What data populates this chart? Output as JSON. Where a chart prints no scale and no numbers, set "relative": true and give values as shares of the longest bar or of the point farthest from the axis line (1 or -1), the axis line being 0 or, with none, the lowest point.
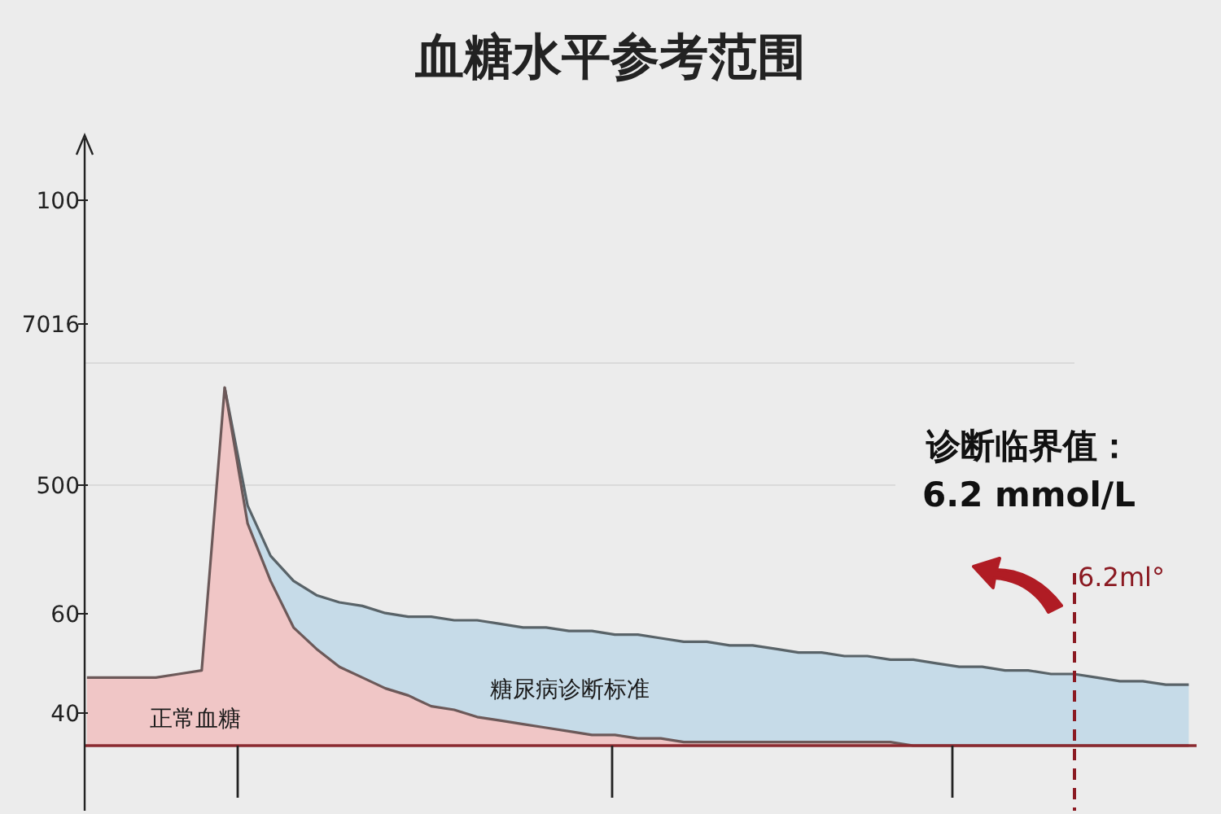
{
  "chart_data": {
    "type": "area",
    "title": "血糖水平参考范围",
    "relative": true,
    "categories": [
      null,
      null,
      null,
      null,
      null,
      null,
      null,
      null,
      null,
      null,
      null,
      null,
      null,
      null,
      null,
      null,
      null,
      null,
      null,
      null,
      null,
      null,
      null,
      null,
      null,
      null,
      null,
      null,
      null,
      null,
      null,
      null,
      null,
      null,
      null,
      null,
      null,
      null,
      null,
      null,
      null,
      null,
      null,
      null,
      null,
      null,
      null,
      null,
      null
    ],
    "series": [
      {
        "name": "糖尿病诊断标准",
        "color": "#c6dbe8",
        "values": [
          null,
          null,
          null,
          null,
          null,
          null,
          1.0,
          0.67,
          0.53,
          0.46,
          0.42,
          0.4,
          0.39,
          0.37,
          0.36,
          0.36,
          0.35,
          0.35,
          0.34,
          0.33,
          0.33,
          0.32,
          0.32,
          0.31,
          0.31,
          0.3,
          0.29,
          0.29,
          0.28,
          0.28,
          0.27,
          0.26,
          0.26,
          0.25,
          0.25,
          0.24,
          0.24,
          0.23,
          0.22,
          0.22,
          0.21,
          0.21,
          0.2,
          0.2,
          0.19,
          0.18,
          0.18,
          0.17,
          0.17
        ]
      },
      {
        "name": "正常血糖",
        "color": "#f0c6c6",
        "values": [
          0.19,
          0.19,
          0.19,
          0.19,
          0.2,
          0.21,
          1.0,
          0.62,
          0.46,
          0.33,
          0.27,
          0.22,
          0.19,
          0.16,
          0.14,
          0.11,
          0.1,
          0.08,
          0.07,
          0.06,
          0.05,
          0.04,
          0.03,
          0.03,
          0.02,
          0.02,
          0.01,
          0.01,
          0.01,
          0.01,
          0.01,
          0.01,
          0.01,
          0.01,
          0.01,
          0.01,
          0,
          0,
          0,
          0,
          0,
          0,
          0,
          0,
          0,
          0,
          0,
          0,
          0
        ]
      }
    ],
    "annotations": [
      "100",
      "7016",
      "500",
      "60",
      "40",
      "诊断临界值：",
      "6.2 mmol/L",
      "6.2ml°"
    ]
  }
}
